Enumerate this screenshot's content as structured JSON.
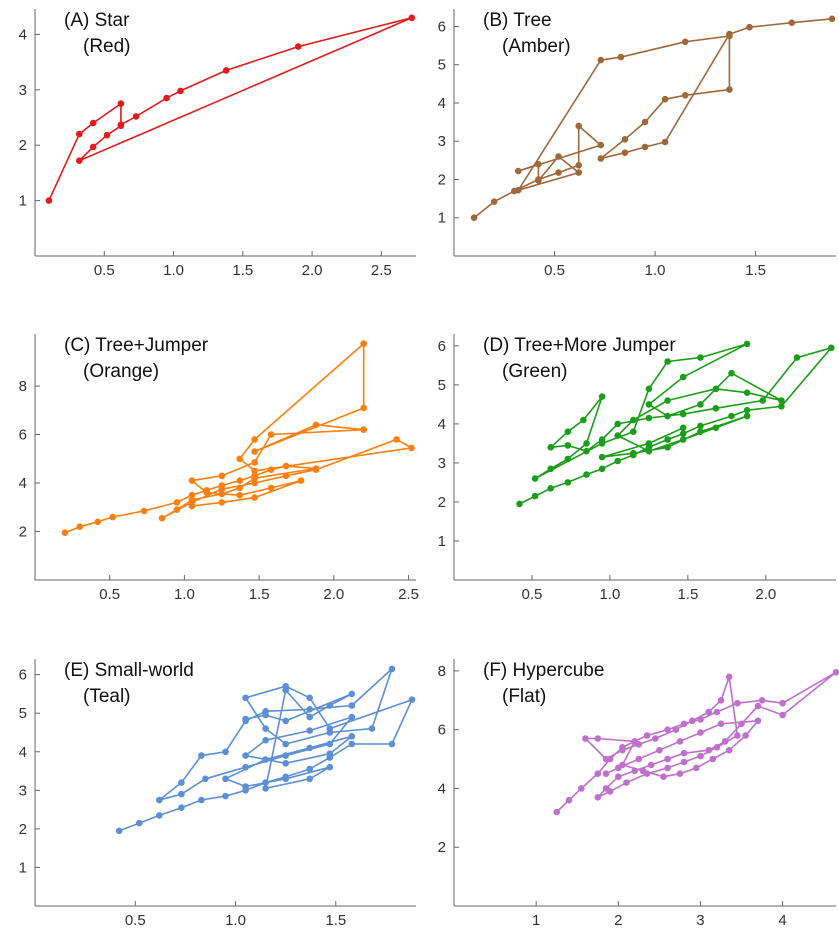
{
  "chart_data": [
    {
      "type": "line",
      "title": "(A) Star",
      "subtitle": "(Red)",
      "color": "#e41a1c",
      "xlim": [
        0.0,
        2.75
      ],
      "ylim": [
        0.0,
        4.35
      ],
      "xticks": [
        0.5,
        1.0,
        1.5,
        2.0,
        2.5
      ],
      "xtick_labels": [
        "0.5",
        "1.0",
        "1.5",
        "2.0",
        "2.5"
      ],
      "yticks": [
        1,
        2,
        3,
        4
      ],
      "ytick_labels": [
        "1",
        "2",
        "3",
        "4"
      ],
      "points": [
        [
          0.1,
          1.0
        ],
        [
          0.32,
          2.2
        ],
        [
          0.42,
          2.4
        ],
        [
          0.62,
          2.75
        ],
        [
          0.62,
          2.35
        ],
        [
          0.52,
          2.18
        ],
        [
          0.42,
          1.97
        ],
        [
          0.32,
          1.72
        ],
        [
          2.72,
          4.3
        ],
        [
          1.9,
          3.78
        ],
        [
          1.38,
          3.35
        ],
        [
          1.05,
          2.98
        ],
        [
          0.95,
          2.85
        ],
        [
          0.73,
          2.52
        ],
        [
          0.62,
          2.37
        ]
      ]
    },
    {
      "type": "line",
      "title": "(B) Tree",
      "subtitle": "(Amber)",
      "color": "#a0683a",
      "xlim": [
        0.0,
        1.9
      ],
      "ylim": [
        0.0,
        6.3
      ],
      "xticks": [
        0.5,
        1.0,
        1.5
      ],
      "xtick_labels": [
        "0.5",
        "1.0",
        "1.5"
      ],
      "yticks": [
        1,
        2,
        3,
        4,
        5,
        6
      ],
      "ytick_labels": [
        "1",
        "2",
        "3",
        "4",
        "5",
        "6"
      ],
      "points": [
        [
          0.1,
          1.0
        ],
        [
          0.2,
          1.42
        ],
        [
          0.3,
          1.7
        ],
        [
          0.42,
          2.0
        ],
        [
          0.52,
          2.18
        ],
        [
          0.62,
          2.37
        ],
        [
          0.62,
          3.4
        ],
        [
          0.73,
          2.9
        ],
        [
          0.32,
          2.22
        ],
        [
          0.42,
          2.4
        ],
        [
          0.42,
          1.97
        ],
        [
          0.52,
          2.6
        ],
        [
          0.62,
          2.18
        ],
        [
          0.32,
          1.72
        ],
        [
          0.73,
          5.12
        ],
        [
          0.83,
          5.2
        ],
        [
          1.15,
          5.6
        ],
        [
          1.37,
          5.75
        ],
        [
          1.37,
          4.35
        ],
        [
          1.15,
          4.2
        ],
        [
          1.05,
          4.1
        ],
        [
          0.95,
          3.5
        ],
        [
          0.85,
          3.05
        ],
        [
          0.73,
          2.55
        ],
        [
          0.85,
          2.7
        ],
        [
          0.95,
          2.85
        ],
        [
          1.05,
          2.98
        ],
        [
          1.37,
          5.8
        ],
        [
          1.47,
          5.98
        ],
        [
          1.68,
          6.1
        ],
        [
          1.88,
          6.2
        ]
      ]
    },
    {
      "type": "line",
      "title": "(C) Tree+Jumper",
      "subtitle": "(Orange)",
      "color": "#ff7f0e",
      "xlim": [
        0.0,
        2.55
      ],
      "ylim": [
        0.0,
        9.9
      ],
      "xticks": [
        0.5,
        1.0,
        1.5,
        2.0,
        2.5
      ],
      "xtick_labels": [
        "0.5",
        "1.0",
        "1.5",
        "2.0",
        "2.5"
      ],
      "yticks": [
        2,
        4,
        6,
        8
      ],
      "ytick_labels": [
        "2",
        "4",
        "6",
        "8"
      ],
      "points": [
        [
          0.2,
          1.95
        ],
        [
          0.3,
          2.2
        ],
        [
          0.42,
          2.4
        ],
        [
          0.52,
          2.6
        ],
        [
          0.73,
          2.85
        ],
        [
          0.95,
          3.2
        ],
        [
          1.05,
          3.5
        ],
        [
          1.15,
          3.7
        ],
        [
          1.25,
          3.9
        ],
        [
          1.37,
          4.1
        ],
        [
          1.47,
          4.3
        ],
        [
          1.58,
          4.55
        ],
        [
          1.68,
          4.7
        ],
        [
          1.88,
          4.6
        ],
        [
          1.47,
          4.2
        ],
        [
          1.37,
          3.8
        ],
        [
          1.25,
          3.55
        ],
        [
          1.05,
          3.3
        ],
        [
          0.95,
          2.9
        ],
        [
          0.85,
          2.55
        ],
        [
          1.05,
          3.2
        ],
        [
          1.25,
          3.75
        ],
        [
          1.47,
          4.0
        ],
        [
          1.68,
          4.3
        ],
        [
          1.88,
          4.55
        ],
        [
          2.42,
          5.8
        ],
        [
          2.52,
          5.45
        ],
        [
          1.47,
          4.5
        ],
        [
          1.37,
          5.0
        ],
        [
          1.47,
          5.8
        ],
        [
          2.2,
          9.75
        ],
        [
          2.2,
          7.1
        ],
        [
          1.47,
          5.3
        ],
        [
          1.88,
          6.4
        ],
        [
          2.2,
          6.2
        ],
        [
          1.58,
          6.0
        ],
        [
          1.47,
          4.85
        ],
        [
          1.25,
          4.3
        ],
        [
          1.05,
          4.1
        ],
        [
          1.15,
          3.6
        ],
        [
          1.37,
          3.5
        ],
        [
          1.58,
          3.8
        ],
        [
          1.78,
          4.1
        ],
        [
          1.47,
          3.4
        ],
        [
          1.25,
          3.2
        ],
        [
          1.05,
          3.05
        ]
      ]
    },
    {
      "type": "line",
      "title": "(D) Tree+More Jumper",
      "subtitle": "(Green)",
      "color": "#1a9e1a",
      "xlim": [
        0.0,
        2.45
      ],
      "ylim": [
        0.0,
        6.15
      ],
      "xticks": [
        0.5,
        1.0,
        1.5,
        2.0
      ],
      "xtick_labels": [
        "0.5",
        "1.0",
        "1.5",
        "2.0"
      ],
      "yticks": [
        1,
        2,
        3,
        4,
        5,
        6
      ],
      "ytick_labels": [
        "1",
        "2",
        "3",
        "4",
        "5",
        "6"
      ],
      "points": [
        [
          0.42,
          1.95
        ],
        [
          0.52,
          2.15
        ],
        [
          0.62,
          2.35
        ],
        [
          0.73,
          2.5
        ],
        [
          0.85,
          2.7
        ],
        [
          0.95,
          2.85
        ],
        [
          1.05,
          3.05
        ],
        [
          1.15,
          3.2
        ],
        [
          1.25,
          3.4
        ],
        [
          1.37,
          3.6
        ],
        [
          1.47,
          3.75
        ],
        [
          1.58,
          3.95
        ],
        [
          1.78,
          4.2
        ],
        [
          1.88,
          4.35
        ],
        [
          2.1,
          4.45
        ],
        [
          2.42,
          5.95
        ],
        [
          2.2,
          5.7
        ],
        [
          1.98,
          4.6
        ],
        [
          1.68,
          4.4
        ],
        [
          1.47,
          4.25
        ],
        [
          1.25,
          4.15
        ],
        [
          1.05,
          4.0
        ],
        [
          0.95,
          3.6
        ],
        [
          0.85,
          3.3
        ],
        [
          0.73,
          3.45
        ],
        [
          0.62,
          3.4
        ],
        [
          0.73,
          3.8
        ],
        [
          0.83,
          4.1
        ],
        [
          0.95,
          4.7
        ],
        [
          0.85,
          3.5
        ],
        [
          0.73,
          3.1
        ],
        [
          0.62,
          2.85
        ],
        [
          0.52,
          2.6
        ],
        [
          0.95,
          3.5
        ],
        [
          1.15,
          3.8
        ],
        [
          1.25,
          4.9
        ],
        [
          1.37,
          5.6
        ],
        [
          1.58,
          5.7
        ],
        [
          1.88,
          6.05
        ],
        [
          1.47,
          5.2
        ],
        [
          1.25,
          4.5
        ],
        [
          1.37,
          4.2
        ],
        [
          1.58,
          4.5
        ],
        [
          1.78,
          5.3
        ],
        [
          2.1,
          4.6
        ],
        [
          1.88,
          4.8
        ],
        [
          1.68,
          4.9
        ],
        [
          1.37,
          4.6
        ],
        [
          1.15,
          4.1
        ],
        [
          1.05,
          3.7
        ],
        [
          1.25,
          3.3
        ],
        [
          1.47,
          3.6
        ],
        [
          1.68,
          3.9
        ],
        [
          1.88,
          4.2
        ],
        [
          1.58,
          3.8
        ],
        [
          1.37,
          3.4
        ],
        [
          1.15,
          3.25
        ],
        [
          0.95,
          3.15
        ],
        [
          1.25,
          3.5
        ],
        [
          1.47,
          3.9
        ]
      ]
    },
    {
      "type": "line",
      "title": "(E) Small-world",
      "subtitle": "(Teal)",
      "color": "#5b8fd6",
      "xlim": [
        0.0,
        1.9
      ],
      "ylim": [
        0.0,
        6.25
      ],
      "xticks": [
        0.5,
        1.0,
        1.5
      ],
      "xtick_labels": [
        "0.5",
        "1.0",
        "1.5"
      ],
      "yticks": [
        1,
        2,
        3,
        4,
        5,
        6
      ],
      "ytick_labels": [
        "1",
        "2",
        "3",
        "4",
        "5",
        "6"
      ],
      "points": [
        [
          0.42,
          1.95
        ],
        [
          0.52,
          2.15
        ],
        [
          0.62,
          2.35
        ],
        [
          0.73,
          2.55
        ],
        [
          0.83,
          2.75
        ],
        [
          0.95,
          2.85
        ],
        [
          1.05,
          3.0
        ],
        [
          1.15,
          3.2
        ],
        [
          1.25,
          3.35
        ],
        [
          1.37,
          3.55
        ],
        [
          1.47,
          3.85
        ],
        [
          1.58,
          4.2
        ],
        [
          1.78,
          4.2
        ],
        [
          1.88,
          5.35
        ],
        [
          1.47,
          4.6
        ],
        [
          1.37,
          5.4
        ],
        [
          1.25,
          5.7
        ],
        [
          1.05,
          5.4
        ],
        [
          1.15,
          4.6
        ],
        [
          1.25,
          4.2
        ],
        [
          1.47,
          4.5
        ],
        [
          1.68,
          4.6
        ],
        [
          1.78,
          6.15
        ],
        [
          1.58,
          5.2
        ],
        [
          1.37,
          5.1
        ],
        [
          1.15,
          5.05
        ],
        [
          1.05,
          4.8
        ],
        [
          0.95,
          4.0
        ],
        [
          0.83,
          3.9
        ],
        [
          0.73,
          3.2
        ],
        [
          0.62,
          2.75
        ],
        [
          0.73,
          2.9
        ],
        [
          0.85,
          3.3
        ],
        [
          1.05,
          3.6
        ],
        [
          1.25,
          3.9
        ],
        [
          1.47,
          4.2
        ],
        [
          1.58,
          4.9
        ],
        [
          1.37,
          4.55
        ],
        [
          1.15,
          4.3
        ],
        [
          1.05,
          3.9
        ],
        [
          1.25,
          3.7
        ],
        [
          1.47,
          3.95
        ],
        [
          1.58,
          4.4
        ],
        [
          1.37,
          4.1
        ],
        [
          1.15,
          3.8
        ],
        [
          0.95,
          3.3
        ],
        [
          1.05,
          3.1
        ],
        [
          1.25,
          3.3
        ],
        [
          1.47,
          3.6
        ],
        [
          1.37,
          3.3
        ],
        [
          1.15,
          3.05
        ],
        [
          1.25,
          5.6
        ],
        [
          1.37,
          4.9
        ],
        [
          1.47,
          5.2
        ],
        [
          1.58,
          5.5
        ],
        [
          1.25,
          4.8
        ],
        [
          1.15,
          4.95
        ],
        [
          1.05,
          4.85
        ]
      ]
    },
    {
      "type": "line",
      "title": "(F) Hypercube",
      "subtitle": "(Flat)",
      "color": "#bf6fcc",
      "xlim": [
        0.0,
        4.65
      ],
      "ylim": [
        0.0,
        8.2
      ],
      "xticks": [
        1,
        2,
        3,
        4
      ],
      "xtick_labels": [
        "1",
        "2",
        "3",
        "4"
      ],
      "yticks": [
        2,
        4,
        6,
        8
      ],
      "ytick_labels": [
        "2",
        "4",
        "6",
        "8"
      ],
      "points": [
        [
          1.25,
          3.2
        ],
        [
          1.4,
          3.6
        ],
        [
          1.55,
          4.0
        ],
        [
          1.75,
          4.5
        ],
        [
          1.9,
          5.0
        ],
        [
          2.05,
          5.4
        ],
        [
          2.2,
          5.6
        ],
        [
          2.35,
          5.8
        ],
        [
          2.6,
          6.0
        ],
        [
          2.8,
          6.2
        ],
        [
          3.0,
          6.35
        ],
        [
          3.2,
          6.6
        ],
        [
          3.45,
          6.9
        ],
        [
          3.75,
          7.0
        ],
        [
          4.0,
          6.9
        ],
        [
          4.65,
          7.95
        ],
        [
          4.0,
          6.5
        ],
        [
          3.7,
          6.8
        ],
        [
          3.5,
          6.2
        ],
        [
          3.3,
          5.6
        ],
        [
          3.1,
          5.3
        ],
        [
          2.8,
          5.2
        ],
        [
          2.6,
          5.0
        ],
        [
          2.4,
          4.8
        ],
        [
          2.2,
          4.6
        ],
        [
          2.0,
          4.4
        ],
        [
          1.85,
          4.0
        ],
        [
          1.75,
          3.7
        ],
        [
          1.9,
          3.9
        ],
        [
          2.1,
          4.2
        ],
        [
          2.35,
          4.5
        ],
        [
          2.6,
          4.7
        ],
        [
          2.8,
          4.9
        ],
        [
          3.0,
          5.1
        ],
        [
          3.2,
          5.4
        ],
        [
          3.45,
          5.8
        ],
        [
          3.35,
          7.8
        ],
        [
          3.25,
          7.0
        ],
        [
          3.1,
          6.6
        ],
        [
          2.9,
          6.3
        ],
        [
          2.7,
          6.0
        ],
        [
          2.45,
          5.7
        ],
        [
          2.25,
          5.5
        ],
        [
          2.05,
          5.3
        ],
        [
          1.85,
          5.0
        ],
        [
          1.6,
          5.7
        ],
        [
          1.75,
          5.7
        ],
        [
          2.2,
          5.6
        ],
        [
          2.05,
          4.8
        ],
        [
          2.3,
          4.6
        ],
        [
          2.55,
          4.4
        ],
        [
          2.75,
          4.5
        ],
        [
          2.95,
          4.7
        ],
        [
          3.15,
          5.0
        ],
        [
          3.35,
          5.3
        ],
        [
          3.55,
          5.8
        ],
        [
          3.7,
          6.3
        ],
        [
          3.25,
          6.2
        ],
        [
          3.0,
          5.9
        ],
        [
          2.75,
          5.6
        ],
        [
          2.5,
          5.3
        ],
        [
          2.25,
          5.0
        ],
        [
          2.0,
          4.7
        ],
        [
          1.85,
          4.5
        ]
      ]
    }
  ]
}
